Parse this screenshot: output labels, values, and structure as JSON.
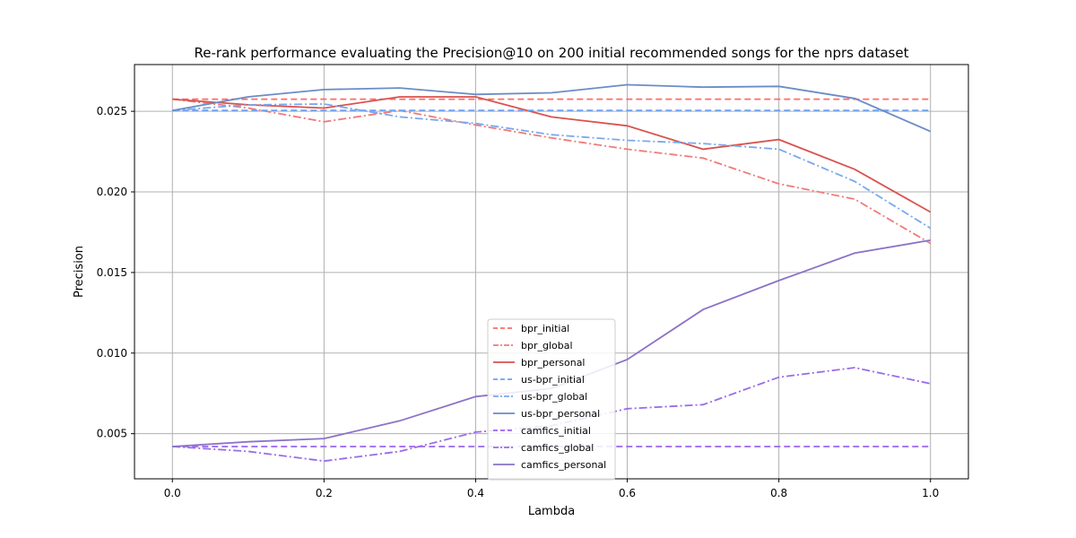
{
  "chart_data": {
    "type": "line",
    "title": "Re-rank performance evaluating the Precision@10 on 200 initial recommended songs for the nprs dataset",
    "xlabel": "Lambda",
    "ylabel": "Precision",
    "x": [
      0.0,
      0.1,
      0.2,
      0.3,
      0.4,
      0.5,
      0.6,
      0.7,
      0.8,
      0.9,
      1.0
    ],
    "xlim": [
      -0.05,
      1.05
    ],
    "ylim": [
      0.0022,
      0.0279
    ],
    "xticks": [
      0.0,
      0.2,
      0.4,
      0.6,
      0.8,
      1.0
    ],
    "xtick_labels": [
      "0.0",
      "0.2",
      "0.4",
      "0.6",
      "0.8",
      "1.0"
    ],
    "yticks": [
      0.005,
      0.01,
      0.015,
      0.02,
      0.025
    ],
    "ytick_labels": [
      "0.005",
      "0.010",
      "0.015",
      "0.020",
      "0.025"
    ],
    "grid": true,
    "legend_position": "lower center",
    "series": [
      {
        "name": "bpr_initial",
        "color": "#ff6b6b",
        "dash": "dashed",
        "values": [
          0.02575,
          0.02575,
          0.02575,
          0.02575,
          0.02575,
          0.02575,
          0.02575,
          0.02575,
          0.02575,
          0.02575,
          0.02575
        ]
      },
      {
        "name": "bpr_global",
        "color": "#f07a7a",
        "dash": "dashdot",
        "values": [
          0.02575,
          0.0252,
          0.02435,
          0.02505,
          0.02415,
          0.02335,
          0.02265,
          0.0221,
          0.0205,
          0.01955,
          0.0168
        ]
      },
      {
        "name": "bpr_personal",
        "color": "#d9534f",
        "dash": "solid",
        "values": [
          0.02575,
          0.0254,
          0.0252,
          0.0259,
          0.0259,
          0.02465,
          0.0241,
          0.02265,
          0.02325,
          0.0214,
          0.01875
        ]
      },
      {
        "name": "us-bpr_initial",
        "color": "#6fa0f0",
        "dash": "dashed",
        "values": [
          0.02505,
          0.02505,
          0.02505,
          0.02505,
          0.02505,
          0.02505,
          0.02505,
          0.02505,
          0.02505,
          0.02505,
          0.02505
        ]
      },
      {
        "name": "us-bpr_global",
        "color": "#7aa8ec",
        "dash": "dashdot",
        "values": [
          0.02505,
          0.0254,
          0.02545,
          0.02465,
          0.02425,
          0.02355,
          0.0232,
          0.023,
          0.02265,
          0.02065,
          0.01775
        ]
      },
      {
        "name": "us-bpr_personal",
        "color": "#6a8cc7",
        "dash": "solid",
        "values": [
          0.02505,
          0.0259,
          0.02635,
          0.02645,
          0.02605,
          0.02615,
          0.02665,
          0.0265,
          0.02655,
          0.0258,
          0.02375
        ]
      },
      {
        "name": "camfics_initial",
        "color": "#9966f0",
        "dash": "dashed",
        "values": [
          0.0042,
          0.0042,
          0.0042,
          0.0042,
          0.0042,
          0.0042,
          0.0042,
          0.0042,
          0.0042,
          0.0042,
          0.0042
        ]
      },
      {
        "name": "camfics_global",
        "color": "#9b6be8",
        "dash": "dashdot",
        "values": [
          0.0042,
          0.0039,
          0.0033,
          0.0039,
          0.0051,
          0.0055,
          0.00655,
          0.0068,
          0.0085,
          0.0091,
          0.0081
        ]
      },
      {
        "name": "camfics_personal",
        "color": "#8c72c7",
        "dash": "solid",
        "values": [
          0.0042,
          0.0045,
          0.0047,
          0.0058,
          0.0073,
          0.0078,
          0.0096,
          0.0127,
          0.0145,
          0.0162,
          0.017
        ]
      }
    ]
  }
}
